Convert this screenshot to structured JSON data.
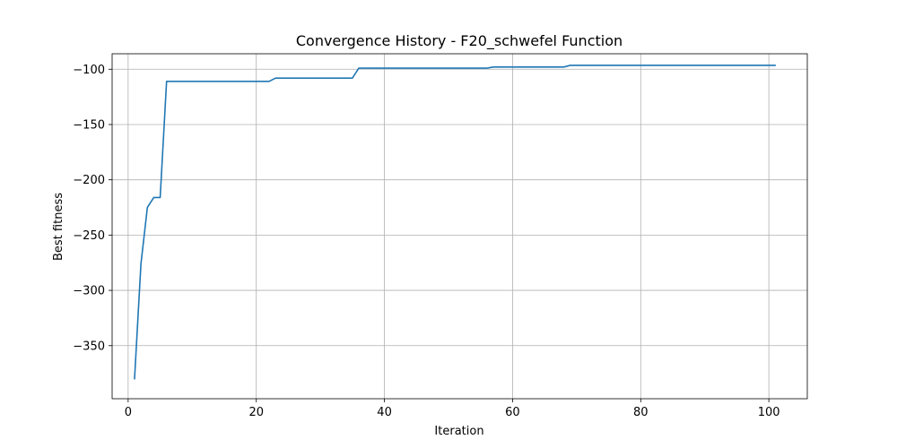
{
  "chart_data": {
    "type": "line",
    "title": "Convergence History - F20_schwefel Function",
    "xlabel": "Iteration",
    "ylabel": "Best fitness",
    "xlim": [
      -2.5,
      106
    ],
    "ylim": [
      -398,
      -86
    ],
    "xticks": [
      0,
      20,
      40,
      60,
      80,
      100
    ],
    "yticks": [
      -350,
      -300,
      -250,
      -200,
      -150,
      -100
    ],
    "ytick_labels": [
      "−350",
      "−300",
      "−250",
      "−200",
      "−150",
      "−100"
    ],
    "grid": true,
    "line_color": "#1f77b4",
    "series": [
      {
        "x": [
          1,
          2,
          3,
          4,
          5,
          6,
          22,
          23,
          35,
          36,
          56,
          57,
          68,
          69,
          101
        ],
        "y": [
          -380,
          -276,
          -225,
          -216,
          -216,
          -111,
          -111,
          -108,
          -108,
          -99,
          -99,
          -98,
          -98,
          -96.5,
          -96.5
        ]
      }
    ]
  }
}
